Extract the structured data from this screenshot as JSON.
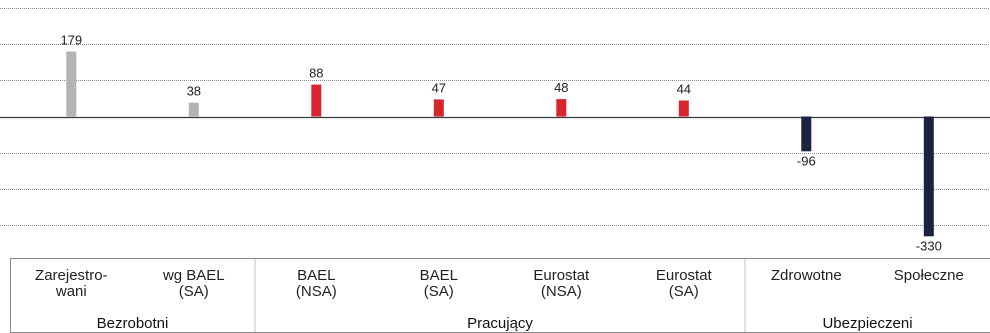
{
  "chart_data": {
    "type": "bar",
    "ylim": [
      -350,
      250
    ],
    "grid": true,
    "gridlines": [
      -300,
      -200,
      -100,
      0,
      100,
      200,
      300
    ],
    "colors": {
      "Bezrobotni": "#b3b3b3",
      "Pracujący": "#d7262e",
      "Ubezpieczeni": "#1c2340"
    },
    "groups": [
      {
        "label": "Bezrobotni",
        "items": [
          {
            "label_lines": [
              "Zarejestro-",
              "wani"
            ],
            "value": 179,
            "value_label": "179"
          },
          {
            "label_lines": [
              "wg BAEL",
              "(SA)"
            ],
            "value": 38,
            "value_label": "38"
          }
        ]
      },
      {
        "label": "Pracujący",
        "items": [
          {
            "label_lines": [
              "BAEL",
              "(NSA)"
            ],
            "value": 88,
            "value_label": "88"
          },
          {
            "label_lines": [
              "BAEL",
              "(SA)"
            ],
            "value": 47,
            "value_label": "47"
          },
          {
            "label_lines": [
              "Eurostat",
              "(NSA)"
            ],
            "value": 48,
            "value_label": "48"
          },
          {
            "label_lines": [
              "Eurostat",
              "(SA)"
            ],
            "value": 44,
            "value_label": "44"
          }
        ]
      },
      {
        "label": "Ubezpieczeni",
        "items": [
          {
            "label_lines": [
              "Zdrowotne"
            ],
            "value": -96,
            "value_label": "-96"
          },
          {
            "label_lines": [
              "Społeczne"
            ],
            "value": -330,
            "value_label": "-330"
          }
        ]
      }
    ]
  }
}
